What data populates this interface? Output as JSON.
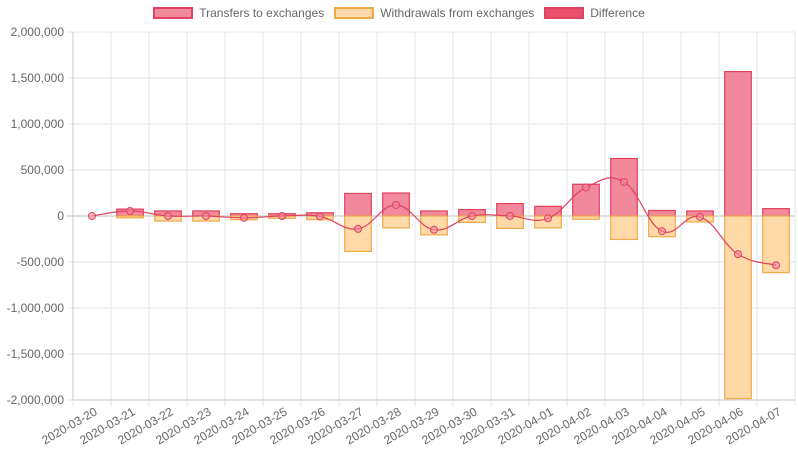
{
  "chart_data": {
    "type": "bar",
    "title": "",
    "xlabel": "",
    "ylabel": "",
    "ylim": [
      -2000000,
      2000000
    ],
    "y_ticks": [
      2000000,
      1500000,
      1000000,
      500000,
      0,
      -500000,
      -1000000,
      -1500000,
      -2000000
    ],
    "y_tick_labels": [
      "2,000,000",
      "1,500,000",
      "1,000,000",
      "500,000",
      "0",
      "-500,000",
      "-1,000,000",
      "-1,500,000",
      "-2,000,000"
    ],
    "grid": true,
    "legend_position": "top-center",
    "categories": [
      "2020-03-20",
      "2020-03-21",
      "2020-03-22",
      "2020-03-23",
      "2020-03-24",
      "2020-03-25",
      "2020-03-26",
      "2020-03-27",
      "2020-03-28",
      "2020-03-29",
      "2020-03-30",
      "2020-03-31",
      "2020-04-01",
      "2020-04-02",
      "2020-04-03",
      "2020-04-04",
      "2020-04-05",
      "2020-04-06",
      "2020-04-07"
    ],
    "series": [
      {
        "name": "Transfers to exchanges",
        "type": "bar",
        "fill": "#f1889c",
        "stroke": "#e0425f",
        "values": [
          0,
          75000,
          55000,
          55000,
          25000,
          25000,
          35000,
          245000,
          250000,
          55000,
          70000,
          135000,
          105000,
          345000,
          625000,
          60000,
          55000,
          1570000,
          80000
        ]
      },
      {
        "name": "Withdrawals from exchanges",
        "type": "bar",
        "fill": "#ffdaa8",
        "stroke": "#f0a94a",
        "values": [
          0,
          -20000,
          -55000,
          -55000,
          -40000,
          -25000,
          -40000,
          -385000,
          -130000,
          -205000,
          -70000,
          -135000,
          -130000,
          -35000,
          -255000,
          -225000,
          -65000,
          -1985000,
          -615000
        ]
      },
      {
        "name": "Difference",
        "type": "line",
        "fill": "#e8506d",
        "stroke": "#e0425f",
        "values": [
          0,
          55000,
          0,
          0,
          -20000,
          0,
          -5000,
          -140000,
          120000,
          -150000,
          0,
          0,
          -25000,
          310000,
          370000,
          -165000,
          -10000,
          -415000,
          -535000
        ]
      }
    ]
  }
}
